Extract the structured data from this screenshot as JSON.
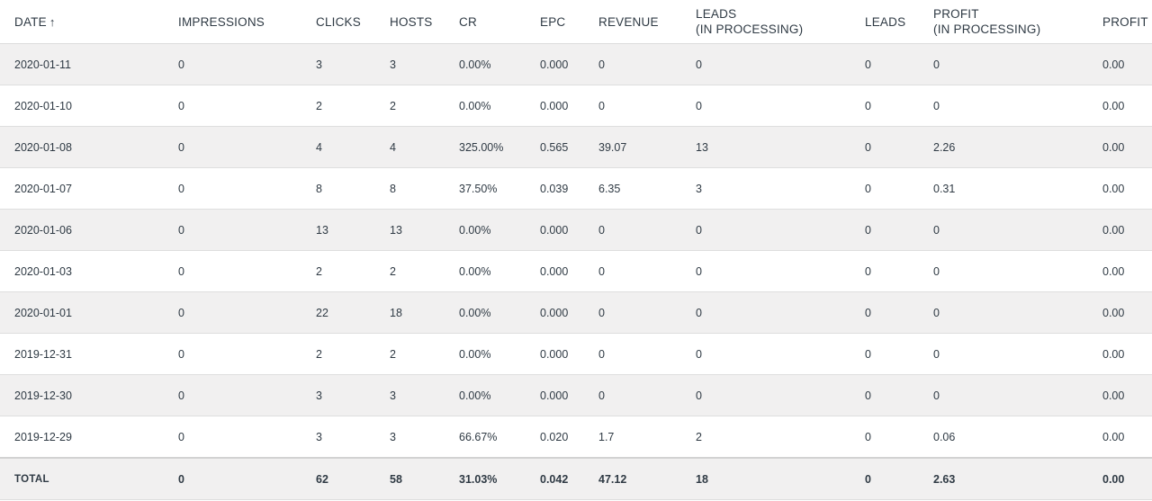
{
  "table": {
    "headers": {
      "date": "DATE",
      "date_sort_icon": "↑",
      "impressions": "IMPRESSIONS",
      "clicks": "CLICKS",
      "hosts": "HOSTS",
      "cr": "CR",
      "epc": "EPC",
      "revenue": "REVENUE",
      "leads_processing_line1": "LEADS",
      "leads_processing_line2": "(IN PROCESSING)",
      "leads": "LEADS",
      "profit_processing_line1": "PROFIT",
      "profit_processing_line2": "(IN PROCESSING)",
      "profit": "PROFIT"
    },
    "rows": [
      [
        "2020-01-11",
        "0",
        "3",
        "3",
        "0.00%",
        "0.000",
        "0",
        "0",
        "0",
        "0",
        "0.00"
      ],
      [
        "2020-01-10",
        "0",
        "2",
        "2",
        "0.00%",
        "0.000",
        "0",
        "0",
        "0",
        "0",
        "0.00"
      ],
      [
        "2020-01-08",
        "0",
        "4",
        "4",
        "325.00%",
        "0.565",
        "39.07",
        "13",
        "0",
        "2.26",
        "0.00"
      ],
      [
        "2020-01-07",
        "0",
        "8",
        "8",
        "37.50%",
        "0.039",
        "6.35",
        "3",
        "0",
        "0.31",
        "0.00"
      ],
      [
        "2020-01-06",
        "0",
        "13",
        "13",
        "0.00%",
        "0.000",
        "0",
        "0",
        "0",
        "0",
        "0.00"
      ],
      [
        "2020-01-03",
        "0",
        "2",
        "2",
        "0.00%",
        "0.000",
        "0",
        "0",
        "0",
        "0",
        "0.00"
      ],
      [
        "2020-01-01",
        "0",
        "22",
        "18",
        "0.00%",
        "0.000",
        "0",
        "0",
        "0",
        "0",
        "0.00"
      ],
      [
        "2019-12-31",
        "0",
        "2",
        "2",
        "0.00%",
        "0.000",
        "0",
        "0",
        "0",
        "0",
        "0.00"
      ],
      [
        "2019-12-30",
        "0",
        "3",
        "3",
        "0.00%",
        "0.000",
        "0",
        "0",
        "0",
        "0",
        "0.00"
      ],
      [
        "2019-12-29",
        "0",
        "3",
        "3",
        "66.67%",
        "0.020",
        "1.7",
        "2",
        "0",
        "0.06",
        "0.00"
      ]
    ],
    "total": [
      "TOTAL",
      "0",
      "62",
      "58",
      "31.03%",
      "0.042",
      "47.12",
      "18",
      "0",
      "2.63",
      "0.00"
    ]
  }
}
